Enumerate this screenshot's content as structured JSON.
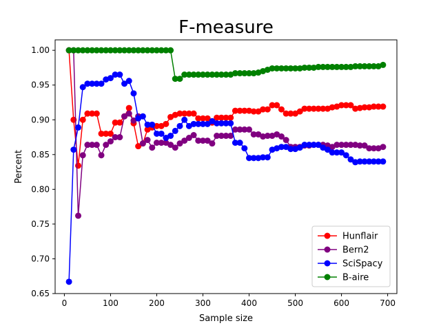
{
  "chart_data": {
    "type": "line",
    "title": "F-measure",
    "xlabel": "Sample size",
    "ylabel": "Percent",
    "xlim": [
      -20,
      720
    ],
    "ylim": [
      0.65,
      1.015
    ],
    "xticks": [
      0,
      100,
      200,
      300,
      400,
      500,
      600,
      700
    ],
    "yticks": [
      0.65,
      0.7,
      0.75,
      0.8,
      0.85,
      0.9,
      0.95,
      1.0
    ],
    "xtick_labels": [
      "0",
      "100",
      "200",
      "300",
      "400",
      "500",
      "600",
      "700"
    ],
    "ytick_labels": [
      "0.65",
      "0.70",
      "0.75",
      "0.80",
      "0.85",
      "0.90",
      "0.95",
      "1.00"
    ],
    "grid": false,
    "legend_position": "lower-right",
    "x": [
      10,
      20,
      30,
      40,
      50,
      60,
      70,
      80,
      90,
      100,
      110,
      120,
      130,
      140,
      150,
      160,
      170,
      180,
      190,
      200,
      210,
      220,
      230,
      240,
      250,
      260,
      270,
      280,
      290,
      300,
      310,
      320,
      330,
      340,
      350,
      360,
      370,
      380,
      390,
      400,
      410,
      420,
      430,
      440,
      450,
      460,
      470,
      480,
      490,
      500,
      510,
      520,
      530,
      540,
      550,
      560,
      570,
      580,
      590,
      600,
      610,
      620,
      630,
      640,
      650,
      660,
      670,
      680,
      690
    ],
    "series": [
      {
        "name": "Hunflair",
        "color": "#ff0000",
        "values": [
          1.0,
          0.9,
          0.834,
          0.9,
          0.909,
          0.909,
          0.909,
          0.88,
          0.88,
          0.88,
          0.896,
          0.896,
          0.905,
          0.917,
          0.895,
          0.862,
          0.866,
          0.886,
          0.889,
          0.891,
          0.891,
          0.894,
          0.904,
          0.907,
          0.909,
          0.909,
          0.909,
          0.909,
          0.902,
          0.902,
          0.902,
          0.896,
          0.903,
          0.903,
          0.903,
          0.903,
          0.913,
          0.913,
          0.913,
          0.913,
          0.912,
          0.912,
          0.915,
          0.915,
          0.921,
          0.921,
          0.915,
          0.909,
          0.909,
          0.909,
          0.912,
          0.916,
          0.916,
          0.916,
          0.916,
          0.916,
          0.916,
          0.918,
          0.919,
          0.921,
          0.921,
          0.921,
          0.916,
          0.917,
          0.918,
          0.918,
          0.919,
          0.919,
          0.919
        ]
      },
      {
        "name": "Bern2",
        "color": "#800080",
        "values": [
          1.0,
          1.0,
          0.762,
          0.849,
          0.864,
          0.864,
          0.864,
          0.849,
          0.864,
          0.869,
          0.875,
          0.875,
          0.905,
          0.909,
          0.899,
          0.905,
          0.866,
          0.871,
          0.86,
          0.867,
          0.867,
          0.867,
          0.864,
          0.86,
          0.866,
          0.87,
          0.874,
          0.878,
          0.87,
          0.87,
          0.87,
          0.866,
          0.877,
          0.877,
          0.877,
          0.877,
          0.886,
          0.886,
          0.886,
          0.886,
          0.879,
          0.879,
          0.876,
          0.877,
          0.877,
          0.879,
          0.876,
          0.871,
          0.861,
          0.861,
          0.861,
          0.863,
          0.863,
          0.864,
          0.864,
          0.864,
          0.863,
          0.861,
          0.864,
          0.864,
          0.864,
          0.864,
          0.864,
          0.863,
          0.863,
          0.859,
          0.859,
          0.859,
          0.861
        ]
      },
      {
        "name": "SciSpacy",
        "color": "#0000ff",
        "values": [
          0.667,
          0.857,
          0.889,
          0.947,
          0.952,
          0.952,
          0.952,
          0.952,
          0.958,
          0.96,
          0.965,
          0.965,
          0.952,
          0.956,
          0.938,
          0.902,
          0.905,
          0.893,
          0.893,
          0.88,
          0.88,
          0.874,
          0.877,
          0.884,
          0.891,
          0.9,
          0.891,
          0.894,
          0.894,
          0.894,
          0.894,
          0.898,
          0.895,
          0.895,
          0.895,
          0.895,
          0.867,
          0.867,
          0.859,
          0.845,
          0.845,
          0.845,
          0.846,
          0.846,
          0.857,
          0.859,
          0.861,
          0.861,
          0.858,
          0.858,
          0.86,
          0.864,
          0.864,
          0.864,
          0.864,
          0.86,
          0.857,
          0.853,
          0.853,
          0.853,
          0.849,
          0.843,
          0.839,
          0.84,
          0.84,
          0.84,
          0.84,
          0.84,
          0.84
        ]
      },
      {
        "name": "B-aire",
        "color": "#008000",
        "values": [
          1.0,
          1.0,
          1.0,
          1.0,
          1.0,
          1.0,
          1.0,
          1.0,
          1.0,
          1.0,
          1.0,
          1.0,
          1.0,
          1.0,
          1.0,
          1.0,
          1.0,
          1.0,
          1.0,
          1.0,
          1.0,
          1.0,
          1.0,
          0.959,
          0.959,
          0.965,
          0.965,
          0.965,
          0.965,
          0.965,
          0.965,
          0.965,
          0.965,
          0.965,
          0.965,
          0.965,
          0.967,
          0.967,
          0.967,
          0.967,
          0.967,
          0.968,
          0.97,
          0.972,
          0.974,
          0.974,
          0.974,
          0.974,
          0.974,
          0.974,
          0.974,
          0.975,
          0.975,
          0.975,
          0.976,
          0.976,
          0.976,
          0.976,
          0.976,
          0.976,
          0.976,
          0.976,
          0.977,
          0.977,
          0.977,
          0.977,
          0.977,
          0.977,
          0.979
        ]
      }
    ]
  }
}
